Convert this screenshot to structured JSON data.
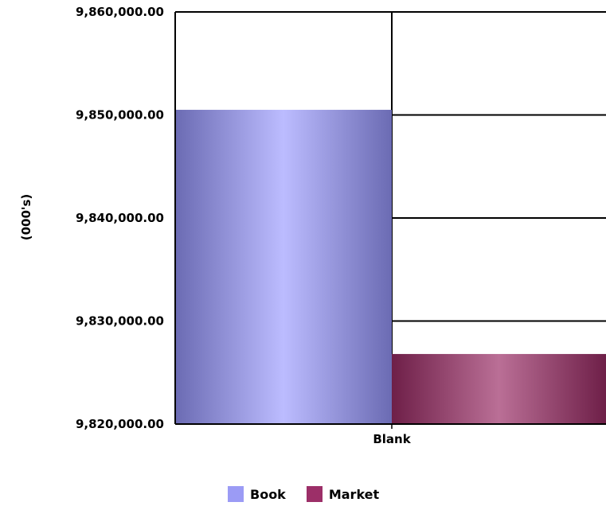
{
  "chart_data": {
    "type": "bar",
    "categories": [
      "Blank"
    ],
    "series": [
      {
        "name": "Book",
        "values": [
          9850500
        ],
        "color": "#9b9bf5"
      },
      {
        "name": "Market",
        "values": [
          9826800
        ],
        "color": "#9c2f68"
      }
    ],
    "ylabel": "(000's)",
    "ylim": [
      9820000,
      9860000
    ],
    "yticks": [
      9820000,
      9830000,
      9840000,
      9850000,
      9860000
    ],
    "ytick_labels": [
      "9,820,000.00",
      "9,830,000.00",
      "9,840,000.00",
      "9,850,000.00",
      "9,860,000.00"
    ],
    "grid": true,
    "legend_position": "bottom"
  }
}
